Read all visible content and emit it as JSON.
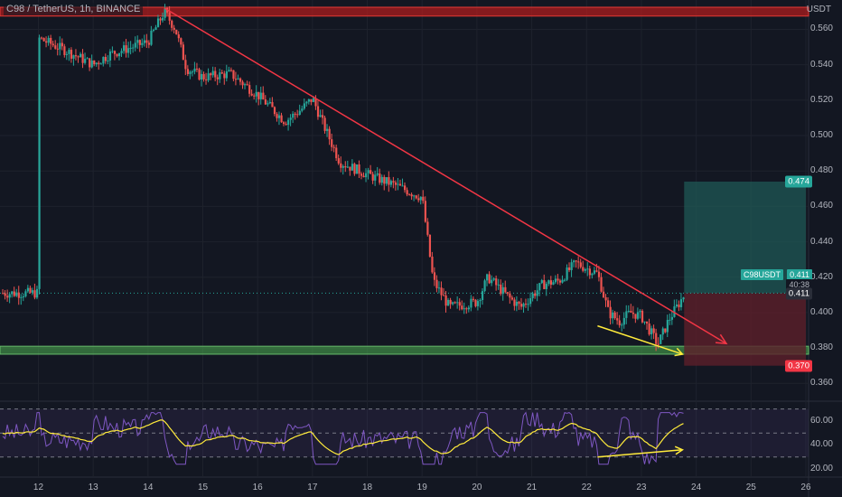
{
  "header": {
    "title": "C98 / TetherUS, 1h, BINANCE"
  },
  "axis": {
    "unit": "USDT"
  },
  "chart_data": {
    "type": "candlestick",
    "symbol": "C98USDT",
    "y_ticks": [
      "0.560",
      "0.540",
      "0.520",
      "0.500",
      "0.480",
      "0.460",
      "0.440",
      "0.420",
      "0.400",
      "0.380",
      "0.360"
    ],
    "x_ticks": [
      "12",
      "13",
      "14",
      "15",
      "16",
      "17",
      "18",
      "19",
      "20",
      "21",
      "22",
      "23",
      "24",
      "25",
      "26"
    ],
    "ylim": [
      0.353,
      0.5725
    ],
    "price_path": [
      [
        12,
        0.555
      ],
      [
        12.5,
        0.548
      ],
      [
        13,
        0.54
      ],
      [
        13.3,
        0.546
      ],
      [
        13.7,
        0.55
      ],
      [
        14,
        0.553
      ],
      [
        14.3,
        0.57
      ],
      [
        14.5,
        0.56
      ],
      [
        14.7,
        0.538
      ],
      [
        15,
        0.533
      ],
      [
        15.5,
        0.535
      ],
      [
        16,
        0.523
      ],
      [
        16.5,
        0.508
      ],
      [
        16.8,
        0.515
      ],
      [
        17,
        0.521
      ],
      [
        17.2,
        0.506
      ],
      [
        17.5,
        0.485
      ],
      [
        18,
        0.478
      ],
      [
        18.5,
        0.472
      ],
      [
        19,
        0.465
      ],
      [
        19.2,
        0.418
      ],
      [
        19.5,
        0.403
      ],
      [
        20,
        0.406
      ],
      [
        20.2,
        0.42
      ],
      [
        20.6,
        0.408
      ],
      [
        20.8,
        0.403
      ],
      [
        21.2,
        0.416
      ],
      [
        21.5,
        0.418
      ],
      [
        21.8,
        0.428
      ],
      [
        22.2,
        0.422
      ],
      [
        22.4,
        0.4
      ],
      [
        22.6,
        0.395
      ],
      [
        22.8,
        0.4
      ],
      [
        23,
        0.398
      ],
      [
        23.3,
        0.382
      ],
      [
        23.5,
        0.396
      ],
      [
        23.8,
        0.411
      ]
    ],
    "current_price": "0.411",
    "countdown": "40:38",
    "position_labels": {
      "target": "0.474",
      "stop": "0.370",
      "entry": "0.411"
    },
    "position": {
      "entry": 0.411,
      "target": 0.474,
      "stop": 0.37,
      "x_from": 23.78,
      "x_to": 26
    },
    "resistance_zone": [
      0.5675,
      0.5725
    ],
    "support_zone": [
      0.3765,
      0.381
    ],
    "trendline": {
      "from": [
        14.3,
        0.572
      ],
      "to": [
        24.55,
        0.3825
      ]
    },
    "divergence_arrow": {
      "from": [
        22.2,
        0.3925
      ],
      "to": [
        23.75,
        0.3765
      ]
    },
    "rsi": {
      "y_ticks": [
        "60.00",
        "40.00",
        "20.00"
      ],
      "ylim": [
        17,
        72
      ],
      "bands": [
        70,
        50,
        30
      ],
      "divergence_arrow": {
        "from": [
          22.2,
          30
        ],
        "to": [
          23.75,
          36
        ]
      }
    },
    "colors": {
      "up": "#26a69a",
      "down": "#ef5350",
      "trendline": "#f23645",
      "divergence": "#ffeb3b",
      "rsi_line": "#7e57c2",
      "rsi_ma": "#ffeb3b",
      "target_zone": "#1f5c58",
      "stop_zone": "#5c1f2b",
      "support": "#4caf50",
      "resistance": "#b71c1c"
    }
  }
}
